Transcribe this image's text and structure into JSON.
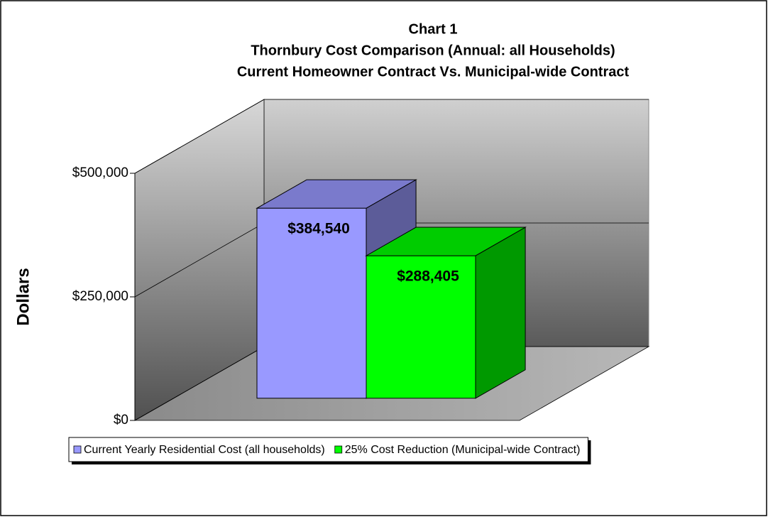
{
  "chart_data": {
    "type": "bar3d",
    "title": [
      "Chart 1",
      "Thornbury Cost Comparison (Annual: all Households)",
      "Current Homeowner Contract Vs. Municipal-wide Contract"
    ],
    "y_label": "Dollars",
    "categories": [
      null
    ],
    "series": [
      {
        "name": "Current Yearly Residential Cost (all households)",
        "color": "#9999ff",
        "values": [
          384540
        ],
        "value_labels": [
          "$384,540"
        ]
      },
      {
        "name": "25% Cost Reduction (Municipal-wide Contract)",
        "color": "#00ff00",
        "values": [
          288405
        ],
        "value_labels": [
          "$288,405"
        ]
      }
    ],
    "ylim": [
      0,
      500000
    ],
    "yticks": [
      {
        "value": 0,
        "label": "$0"
      },
      {
        "value": 250000,
        "label": "$250,000"
      },
      {
        "value": 500000,
        "label": "$500,000"
      }
    ],
    "grid": true,
    "legend": "bottom"
  }
}
